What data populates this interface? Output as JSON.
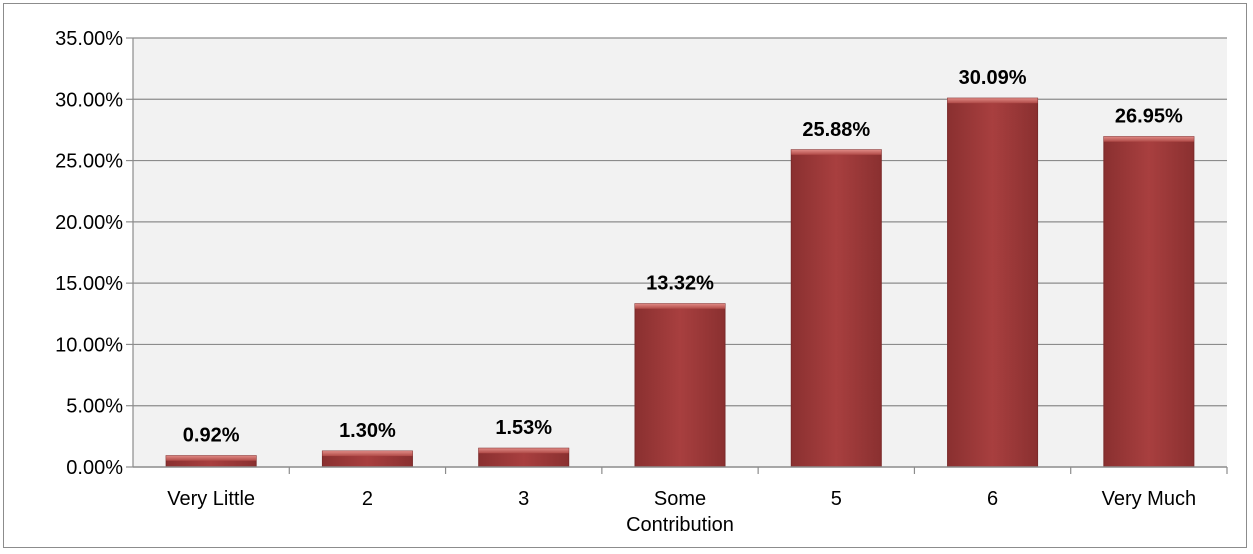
{
  "chart_data": {
    "type": "bar",
    "title": "",
    "xlabel": "",
    "ylabel": "",
    "categories": [
      "Very Little",
      "2",
      "3",
      "Some Contribution",
      "5",
      "6",
      "Very Much"
    ],
    "category_lines": [
      [
        "Very Little"
      ],
      [
        "2"
      ],
      [
        "3"
      ],
      [
        "Some",
        "Contribution"
      ],
      [
        "5"
      ],
      [
        "6"
      ],
      [
        "Very Much"
      ]
    ],
    "values": [
      0.92,
      1.3,
      1.53,
      13.32,
      25.88,
      30.09,
      26.95
    ],
    "data_labels": [
      "0.92%",
      "1.30%",
      "1.53%",
      "13.32%",
      "25.88%",
      "30.09%",
      "26.95%"
    ],
    "ylim": [
      0,
      35
    ],
    "y_ticks": [
      0,
      5,
      10,
      15,
      20,
      25,
      30,
      35
    ],
    "y_tick_labels": [
      "0.00%",
      "5.00%",
      "10.00%",
      "15.00%",
      "20.00%",
      "25.00%",
      "30.00%",
      "35.00%"
    ],
    "grid": true,
    "legend": "none",
    "colors": {
      "bar": "#a23b3b",
      "bar_highlight": "#c96a66",
      "bar_dark": "#7a2a2a",
      "plot_background": "#f2f2f2",
      "gridline": "#8c8c8c"
    }
  }
}
